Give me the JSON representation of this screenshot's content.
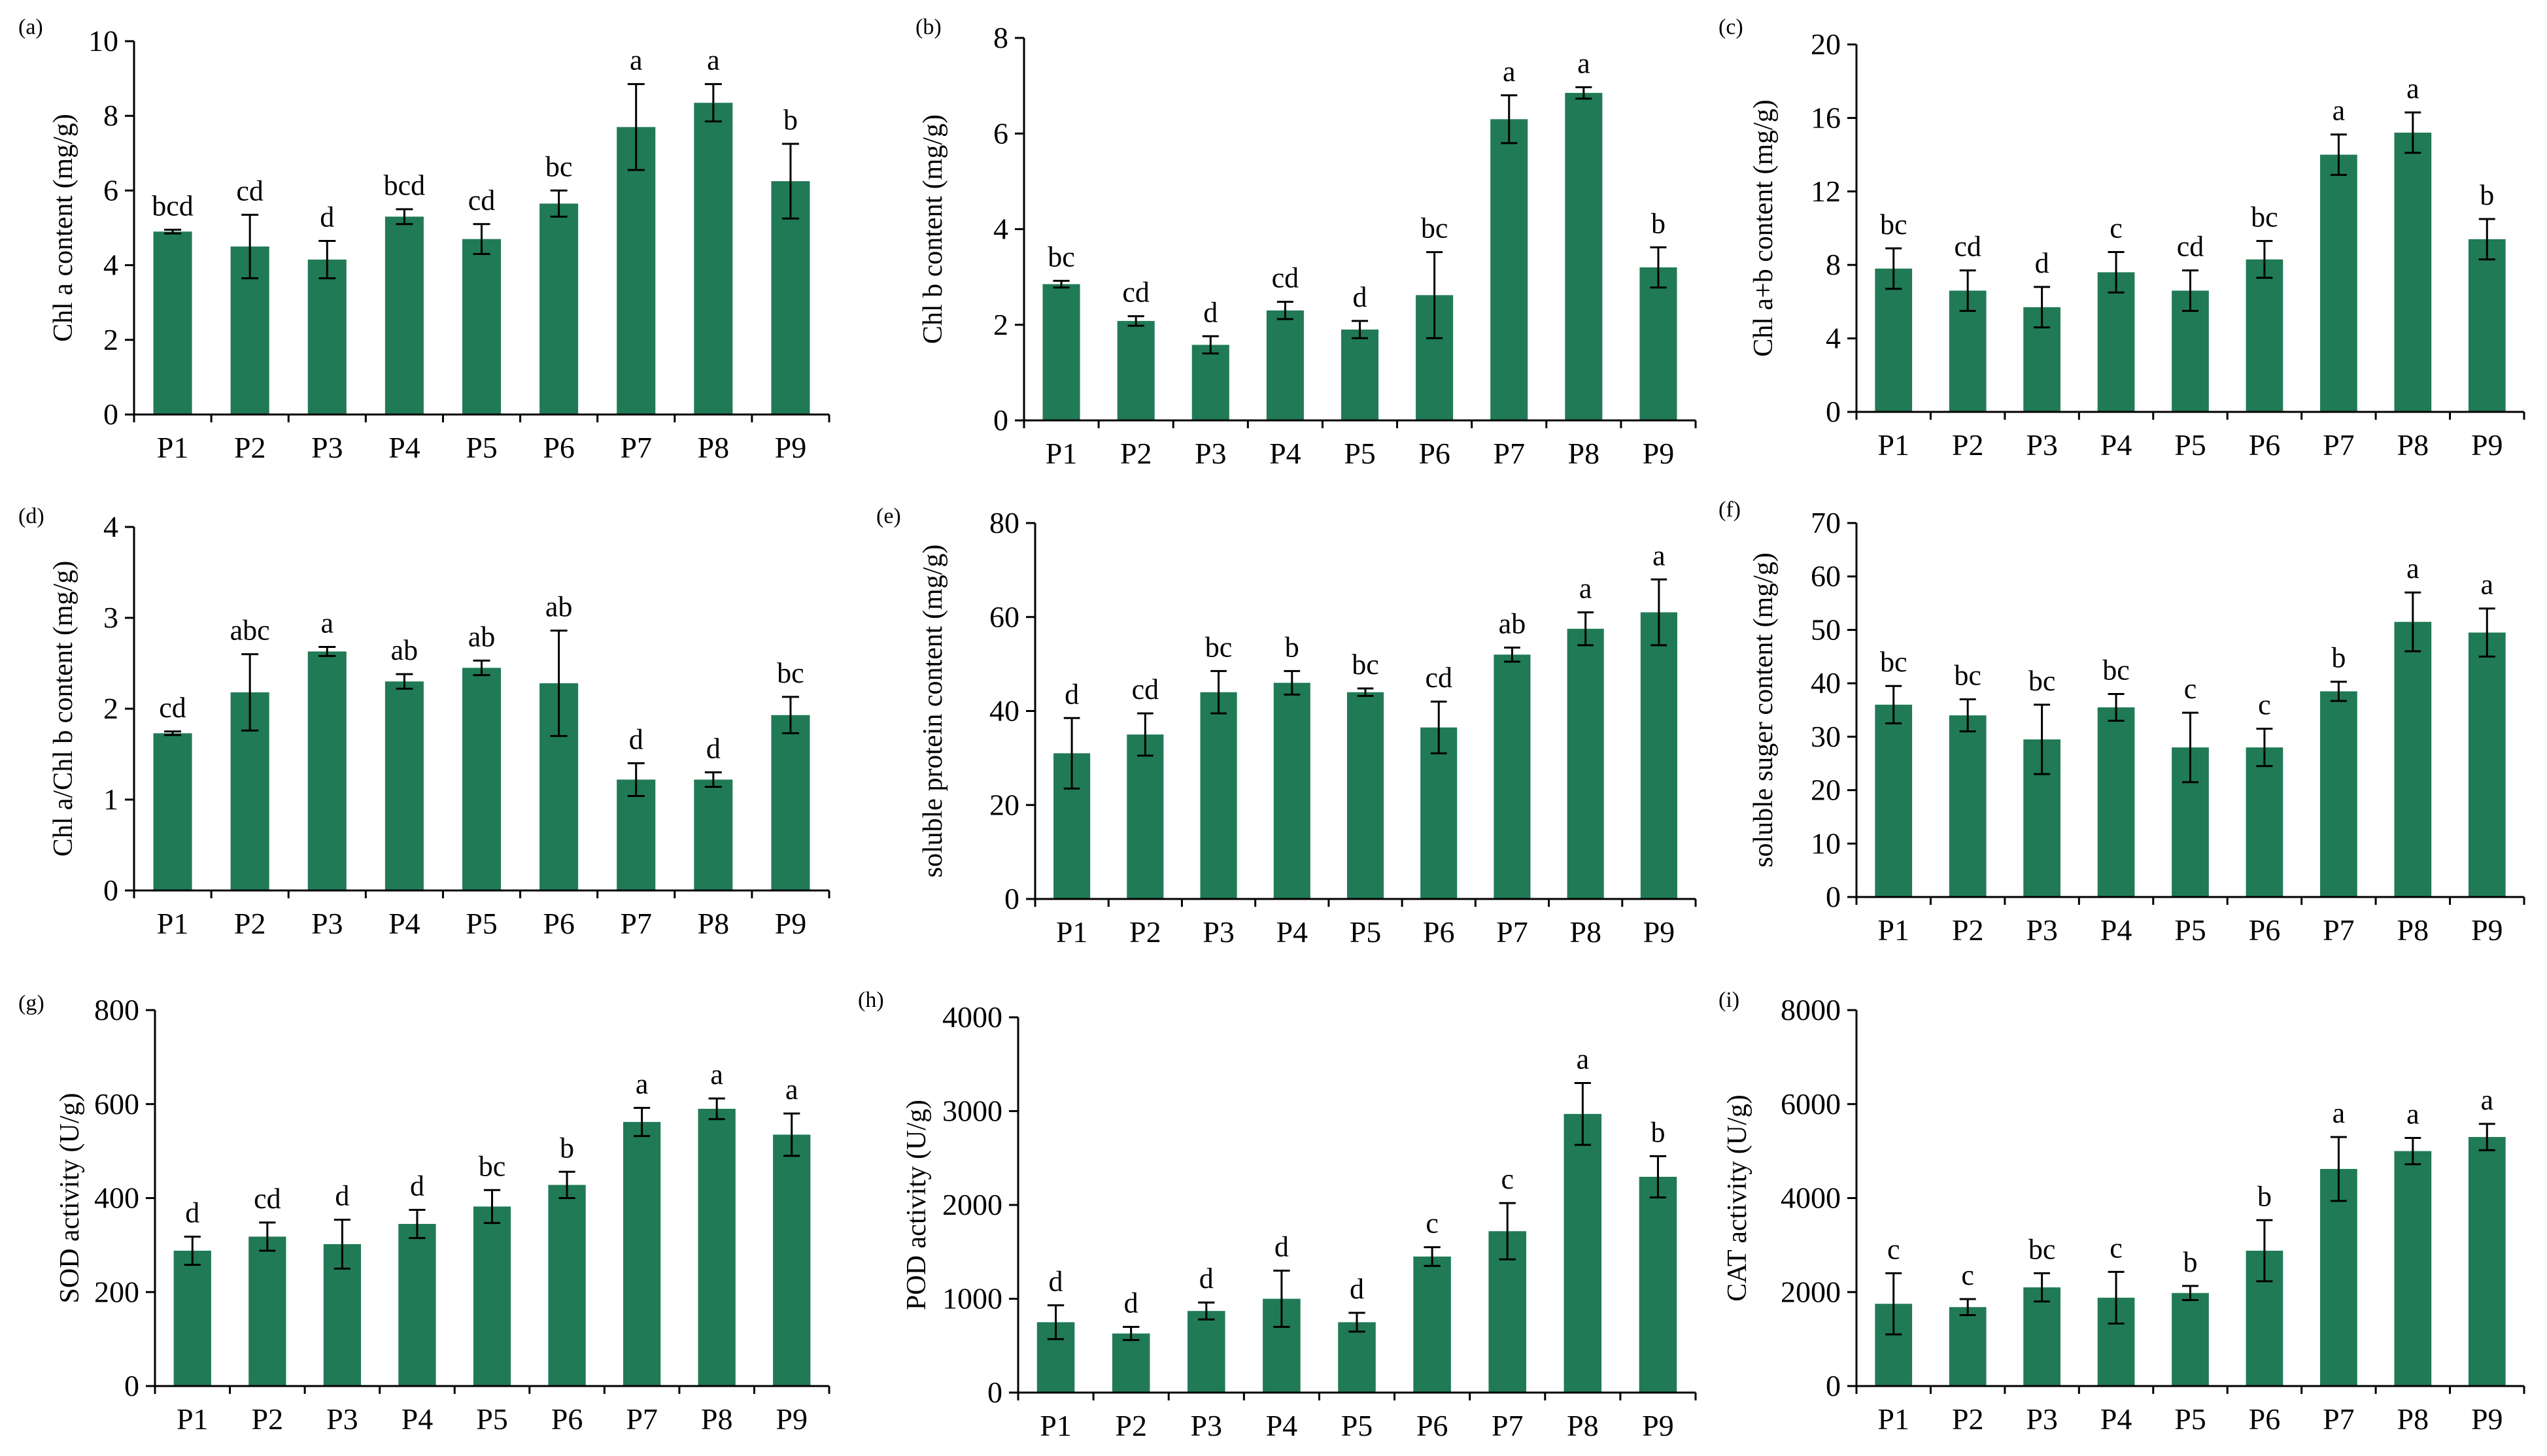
{
  "figure": {
    "title": ""
  },
  "chart_data": [
    {
      "panel": "(a)",
      "type": "bar",
      "ylabel": "Chl a content  (mg/g)",
      "categories": [
        "P1",
        "P2",
        "P3",
        "P4",
        "P5",
        "P6",
        "P7",
        "P8",
        "P9"
      ],
      "ylim": [
        0,
        10
      ],
      "ytick_labels": [
        "0",
        "2",
        "4",
        "6",
        "8",
        "10"
      ],
      "values": [
        4.9,
        4.5,
        4.15,
        5.3,
        4.7,
        5.65,
        7.7,
        8.35,
        6.25
      ],
      "errors": [
        0.05,
        0.85,
        0.5,
        0.2,
        0.4,
        0.35,
        1.15,
        0.5,
        1.0
      ],
      "significance": [
        "bcd",
        "cd",
        "d",
        "bcd",
        "cd",
        "bc",
        "a",
        "a",
        "b"
      ],
      "color": "#207a55"
    },
    {
      "panel": "(b)",
      "type": "bar",
      "ylabel": "Chl b content  (mg/g)",
      "categories": [
        "P1",
        "P2",
        "P3",
        "P4",
        "P5",
        "P6",
        "P7",
        "P8",
        "P9"
      ],
      "ylim": [
        0,
        8
      ],
      "ytick_labels": [
        "0",
        "2",
        "4",
        "6",
        "8"
      ],
      "values": [
        2.85,
        2.08,
        1.58,
        2.3,
        1.9,
        2.62,
        6.3,
        6.85,
        3.2
      ],
      "errors": [
        0.07,
        0.1,
        0.18,
        0.18,
        0.18,
        0.9,
        0.5,
        0.12,
        0.42
      ],
      "significance": [
        "bc",
        "cd",
        "d",
        "cd",
        "d",
        "bc",
        "a",
        "a",
        "b"
      ],
      "color": "#207a55"
    },
    {
      "panel": "(c)",
      "type": "bar",
      "ylabel": "Chl a+b content  (mg/g)",
      "categories": [
        "P1",
        "P2",
        "P3",
        "P4",
        "P5",
        "P6",
        "P7",
        "P8",
        "P9"
      ],
      "ylim": [
        0,
        20
      ],
      "ytick_labels": [
        "0",
        "4",
        "8",
        "12",
        "16",
        "20"
      ],
      "values": [
        7.8,
        6.6,
        5.7,
        7.6,
        6.6,
        8.3,
        14.0,
        15.2,
        9.4
      ],
      "errors": [
        1.1,
        1.1,
        1.1,
        1.1,
        1.1,
        1.0,
        1.1,
        1.1,
        1.1
      ],
      "significance": [
        "bc",
        "cd",
        "d",
        "c",
        "cd",
        "bc",
        "a",
        "a",
        "b"
      ],
      "color": "#207a55"
    },
    {
      "panel": "(d)",
      "type": "bar",
      "ylabel": "Chl a/Chl b content  (mg/g)",
      "categories": [
        "P1",
        "P2",
        "P3",
        "P4",
        "P5",
        "P6",
        "P7",
        "P8",
        "P9"
      ],
      "ylim": [
        0,
        4
      ],
      "ytick_labels": [
        "0",
        "1",
        "2",
        "3",
        "4"
      ],
      "values": [
        1.73,
        2.18,
        2.63,
        2.3,
        2.45,
        2.28,
        1.22,
        1.22,
        1.93
      ],
      "errors": [
        0.02,
        0.42,
        0.05,
        0.08,
        0.08,
        0.58,
        0.18,
        0.08,
        0.2
      ],
      "significance": [
        "cd",
        "abc",
        "a",
        "ab",
        "ab",
        "ab",
        "d",
        "d",
        "bc"
      ],
      "color": "#207a55"
    },
    {
      "panel": "(e)",
      "type": "bar",
      "ylabel": "soluble protein content (mg/g)",
      "categories": [
        "P1",
        "P2",
        "P3",
        "P4",
        "P5",
        "P6",
        "P7",
        "P8",
        "P9"
      ],
      "ylim": [
        0,
        80
      ],
      "ytick_labels": [
        "0",
        "20",
        "40",
        "60",
        "80"
      ],
      "values": [
        31,
        35,
        44,
        46,
        44,
        36.5,
        52,
        57.5,
        61
      ],
      "errors": [
        7.5,
        4.5,
        4.5,
        2.5,
        0.8,
        5.5,
        1.5,
        3.5,
        7
      ],
      "significance": [
        "d",
        "cd",
        "bc",
        "b",
        "bc",
        "cd",
        "ab",
        "a",
        "a"
      ],
      "color": "#207a55"
    },
    {
      "panel": "(f)",
      "type": "bar",
      "ylabel": "soluble suger content (mg/g)",
      "categories": [
        "P1",
        "P2",
        "P3",
        "P4",
        "P5",
        "P6",
        "P7",
        "P8",
        "P9"
      ],
      "ylim": [
        0,
        70
      ],
      "ytick_labels": [
        "0",
        "10",
        "20",
        "30",
        "40",
        "50",
        "60",
        "70"
      ],
      "values": [
        36,
        34,
        29.5,
        35.5,
        28,
        28,
        38.5,
        51.5,
        49.5
      ],
      "errors": [
        3.5,
        3,
        6.5,
        2.5,
        6.5,
        3.5,
        1.8,
        5.5,
        4.5
      ],
      "significance": [
        "bc",
        "bc",
        "bc",
        "bc",
        "c",
        "c",
        "b",
        "a",
        "a"
      ],
      "color": "#207a55"
    },
    {
      "panel": "(g)",
      "type": "bar",
      "ylabel": "SOD activity (U/g)",
      "categories": [
        "P1",
        "P2",
        "P3",
        "P4",
        "P5",
        "P6",
        "P7",
        "P8",
        "P9"
      ],
      "ylim": [
        0,
        800
      ],
      "ytick_labels": [
        "0",
        "200",
        "400",
        "600",
        "800"
      ],
      "values": [
        288,
        318,
        302,
        345,
        382,
        428,
        562,
        590,
        535
      ],
      "errors": [
        30,
        30,
        52,
        30,
        35,
        28,
        30,
        22,
        45
      ],
      "significance": [
        "d",
        "cd",
        "d",
        "d",
        "bc",
        "b",
        "a",
        "a",
        "a"
      ],
      "color": "#207a55"
    },
    {
      "panel": "(h)",
      "type": "bar",
      "ylabel": "POD activity (U/g)",
      "categories": [
        "P1",
        "P2",
        "P3",
        "P4",
        "P5",
        "P6",
        "P7",
        "P8",
        "P9"
      ],
      "ylim": [
        0,
        4000
      ],
      "ytick_labels": [
        "0",
        "1000",
        "2000",
        "3000",
        "4000"
      ],
      "values": [
        750,
        630,
        870,
        1000,
        750,
        1450,
        1720,
        2970,
        2300
      ],
      "errors": [
        180,
        70,
        90,
        300,
        100,
        100,
        300,
        330,
        220
      ],
      "significance": [
        "d",
        "d",
        "d",
        "d",
        "d",
        "c",
        "c",
        "a",
        "b"
      ],
      "color": "#207a55"
    },
    {
      "panel": "(i)",
      "type": "bar",
      "ylabel": "CAT activity (U/g)",
      "categories": [
        "P1",
        "P2",
        "P3",
        "P4",
        "P5",
        "P6",
        "P7",
        "P8",
        "P9"
      ],
      "ylim": [
        0,
        8000
      ],
      "ytick_labels": [
        "0",
        "2000",
        "4000",
        "6000",
        "8000"
      ],
      "values": [
        1750,
        1680,
        2100,
        1880,
        1980,
        2880,
        4620,
        5000,
        5300
      ],
      "errors": [
        650,
        170,
        300,
        550,
        150,
        650,
        680,
        280,
        280
      ],
      "significance": [
        "c",
        "c",
        "bc",
        "c",
        "b",
        "b",
        "a",
        "a",
        "a"
      ],
      "color": "#207a55"
    }
  ]
}
